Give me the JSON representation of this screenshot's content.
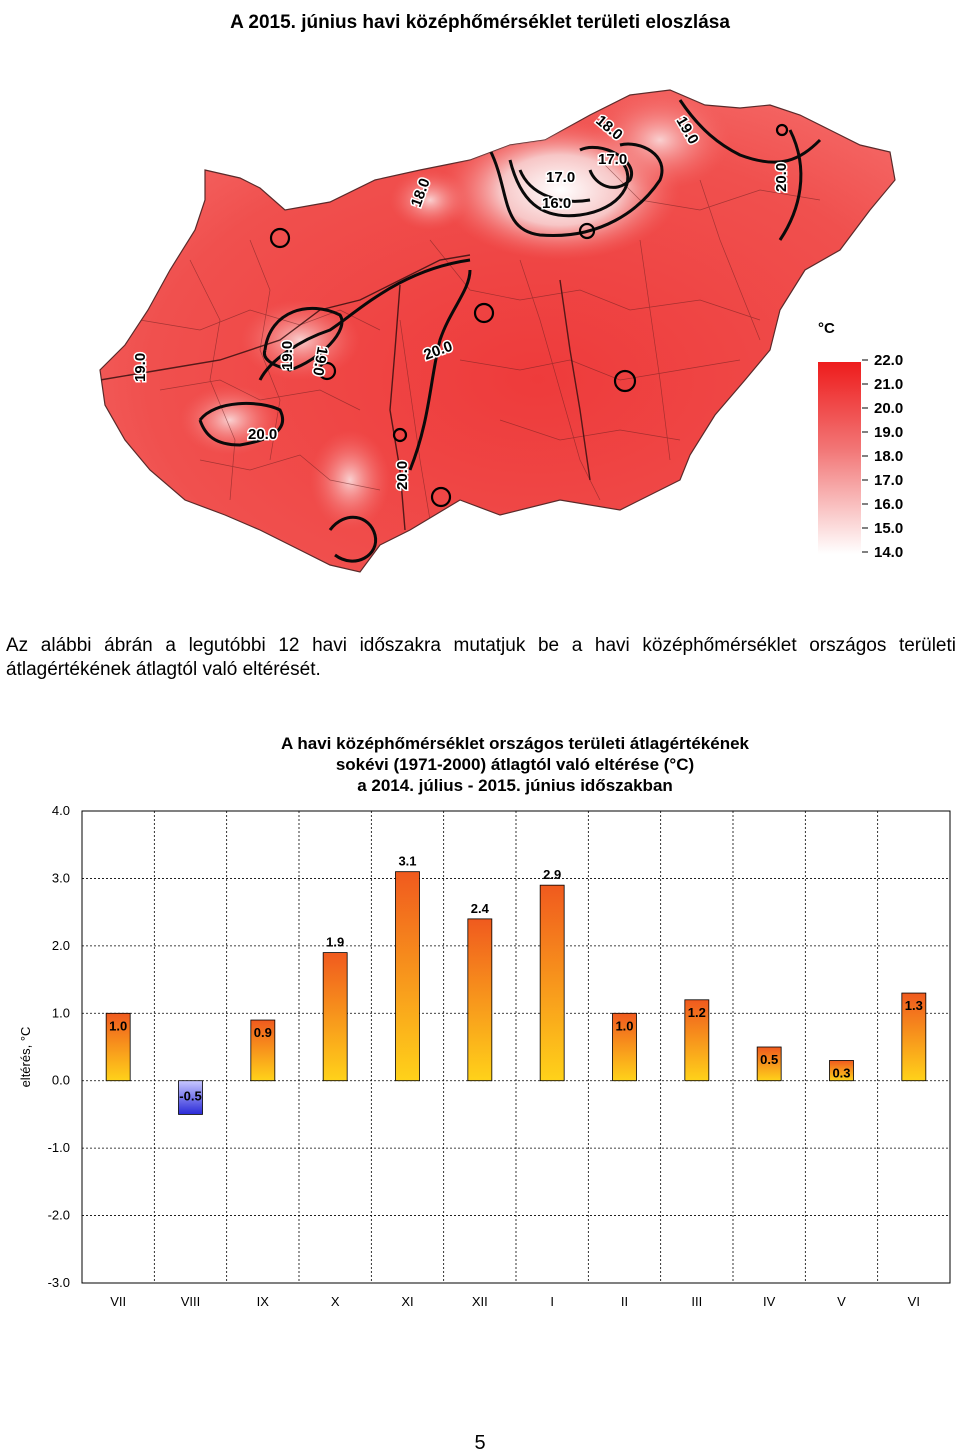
{
  "map": {
    "title": "A 2015. június havi középhőmérséklet területi eloszlása",
    "legend_unit": "°C",
    "legend_values": [
      "22.0",
      "21.0",
      "20.0",
      "19.0",
      "18.0",
      "17.0",
      "16.0",
      "15.0",
      "14.0"
    ],
    "contour_labels": [
      "19.0",
      "18.0",
      "17.0",
      "17.0",
      "16.0",
      "18.0",
      "20.0",
      "19.0",
      "19.0",
      "20.0",
      "20.0",
      "20.0",
      "19.0"
    ]
  },
  "paragraph": "Az alábbi ábrán a legutóbbi 12 havi időszakra mutatjuk be a havi középhőmérséklet országos területi átlagértékének átlagtól való eltérését.",
  "chart_data": {
    "type": "bar",
    "title": [
      "A havi középhőmérséklet országos területi átlagértékének",
      "sokévi (1971-2000) átlagtól való eltérése (°C)",
      "a 2014. július - 2015. június időszakban"
    ],
    "ylabel": "eltérés, °C",
    "xlabel": "",
    "categories": [
      "VII",
      "VIII",
      "IX",
      "X",
      "XI",
      "XII",
      "I",
      "II",
      "III",
      "IV",
      "V",
      "VI"
    ],
    "values": [
      1.0,
      -0.5,
      0.9,
      1.9,
      3.1,
      2.4,
      2.9,
      1.0,
      1.2,
      0.5,
      0.3,
      1.3
    ],
    "value_labels": [
      "1.0",
      "-0.5",
      "0.9",
      "1.9",
      "3.1",
      "2.4",
      "2.9",
      "1.0",
      "1.2",
      "0.5",
      "0.3",
      "1.3"
    ],
    "yticks": [
      "4.0",
      "3.0",
      "2.0",
      "1.0",
      "0.0",
      "-1.0",
      "-2.0",
      "-3.0"
    ],
    "ylim": [
      -3,
      4
    ],
    "grid": true,
    "colors": {
      "positive_top": "#f05a1e",
      "positive_bottom": "#ffd21a",
      "negative_top": "#c8c8ff",
      "negative_bottom": "#2a2ad8"
    }
  },
  "page_number": "5"
}
